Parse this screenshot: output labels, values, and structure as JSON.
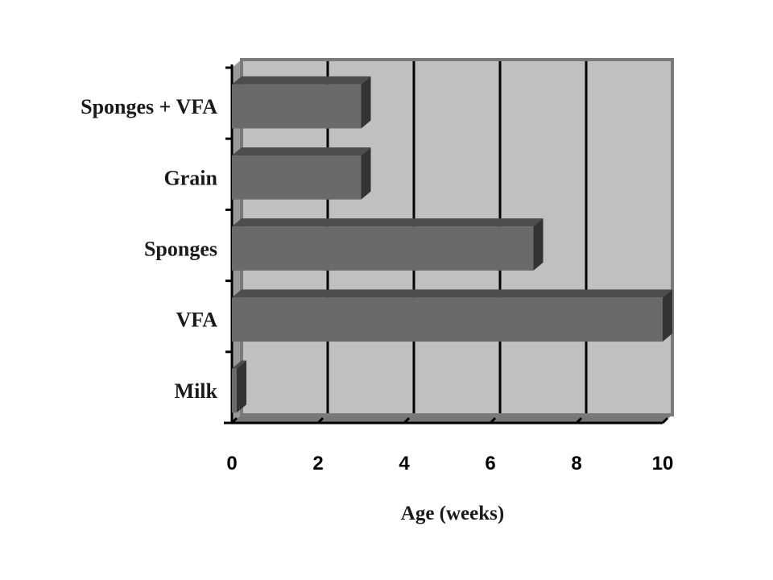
{
  "chart_data": {
    "type": "bar",
    "orientation": "horizontal",
    "style": "3d",
    "title": "",
    "xlabel": "Age (weeks)",
    "ylabel": "",
    "categories": [
      "Sponges + VFA",
      "Grain",
      "Sponges",
      "VFA",
      "Milk"
    ],
    "values": [
      3,
      3,
      7,
      10,
      0
    ],
    "xlim": [
      0,
      10
    ],
    "x_ticks": [
      "0",
      "2",
      "4",
      "6",
      "8",
      "10"
    ],
    "grid": true,
    "legend": "none",
    "colors": {
      "plot_background": "#c0c0c0",
      "bar_front": "#6a6a6a",
      "bar_top": "#4d4d4d",
      "bar_side": "#333333",
      "wall": "#999999",
      "floor": "#777777",
      "gridline": "#000000"
    }
  }
}
